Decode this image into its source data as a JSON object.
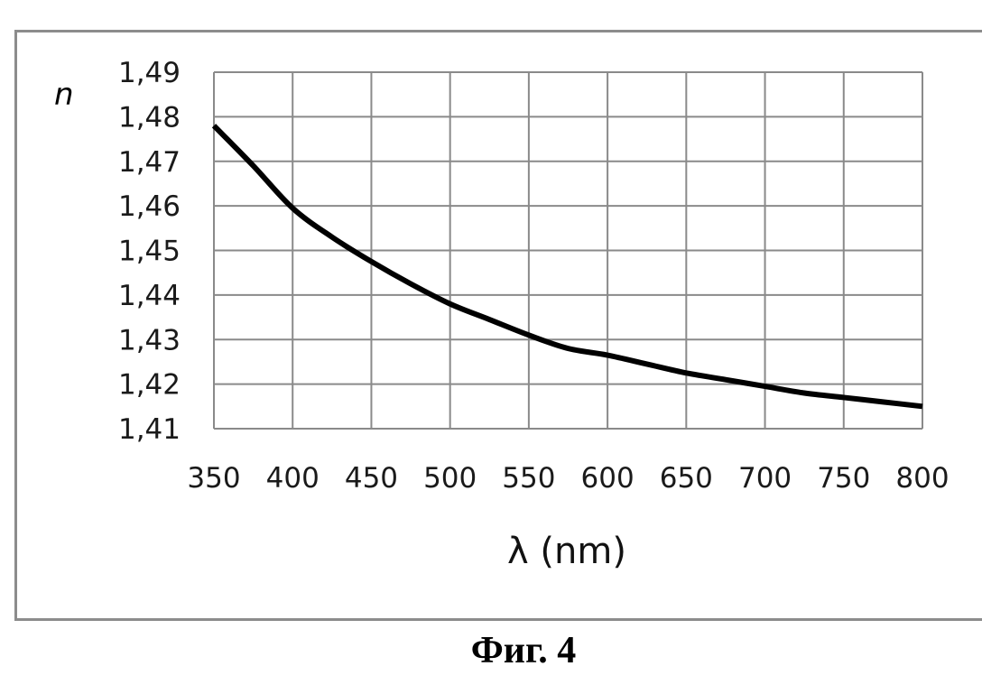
{
  "caption": "Фиг. 4",
  "chart_data": {
    "type": "line",
    "title": "",
    "xlabel": "λ (nm)",
    "ylabel": "n",
    "xlim": [
      350,
      800
    ],
    "ylim": [
      1.41,
      1.49
    ],
    "x_ticks": [
      350,
      400,
      450,
      500,
      550,
      600,
      650,
      700,
      750,
      800
    ],
    "y_ticks": [
      1.41,
      1.42,
      1.43,
      1.44,
      1.45,
      1.46,
      1.47,
      1.48,
      1.49
    ],
    "y_tick_labels": [
      "1,41",
      "1,42",
      "1,43",
      "1,44",
      "1,45",
      "1,46",
      "1,47",
      "1,48",
      "1,49"
    ],
    "grid": true,
    "legend": "none",
    "series": [
      {
        "color": "#000000",
        "x": [
          350,
          375,
          400,
          425,
          450,
          475,
          500,
          525,
          550,
          575,
          600,
          625,
          650,
          675,
          700,
          725,
          750,
          775,
          800
        ],
        "y": [
          1.478,
          1.469,
          1.4595,
          1.453,
          1.4475,
          1.4425,
          1.438,
          1.4345,
          1.431,
          1.428,
          1.4265,
          1.4245,
          1.4225,
          1.421,
          1.4195,
          1.418,
          1.417,
          1.416,
          1.415
        ]
      }
    ]
  }
}
